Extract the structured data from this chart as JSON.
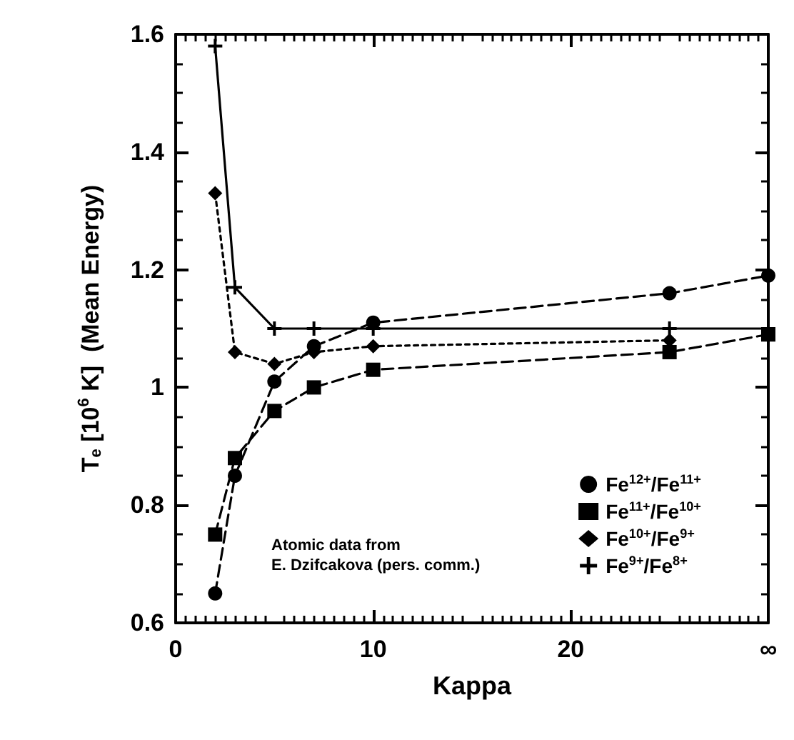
{
  "chart_data": {
    "type": "line",
    "xlabel": "Kappa",
    "ylabel": "T$_{e}$ [10$^{6}$ K]  (Mean Energy)",
    "x": [
      2,
      3,
      5,
      7,
      10,
      25,
      30
    ],
    "series": [
      {
        "name": "Fe$^{12+}$/Fe$^{11+}$",
        "color": "#000000",
        "marker": "circle",
        "line_style": "dashed",
        "values": [
          0.65,
          0.85,
          1.01,
          1.07,
          1.11,
          1.16,
          1.19
        ]
      },
      {
        "name": "Fe$^{11+}$/Fe$^{10+}$",
        "color": "#000000",
        "marker": "square",
        "line_style": "dashed",
        "values": [
          0.75,
          0.88,
          0.96,
          1.0,
          1.03,
          1.06,
          1.09
        ]
      },
      {
        "name": "Fe$^{10+}$/Fe$^{9+}$",
        "color": "#000000",
        "marker": "diamond",
        "line_style": "dotted",
        "values": [
          1.33,
          1.06,
          1.04,
          1.06,
          1.07,
          1.08,
          null
        ]
      },
      {
        "name": "Fe$^{9+}$/Fe$^{8+}$",
        "color": "#000000",
        "marker": "cross",
        "line_style": "solid",
        "values": [
          1.58,
          1.17,
          1.1,
          1.1,
          1.1,
          1.1,
          1.1
        ]
      }
    ],
    "xlim": [
      0,
      30
    ],
    "xticks": [
      0,
      10,
      20,
      {
        "value": 30,
        "label": "∞"
      }
    ],
    "ylim": [
      0.6,
      1.6
    ],
    "yticks": [
      0.6,
      0.8,
      1.0,
      1.2,
      1.4,
      1.6
    ],
    "grid": false,
    "legend": "bottom right",
    "annotations": [
      "Atomic data from\nE. Dzifcakova (pers. comm.)"
    ]
  }
}
